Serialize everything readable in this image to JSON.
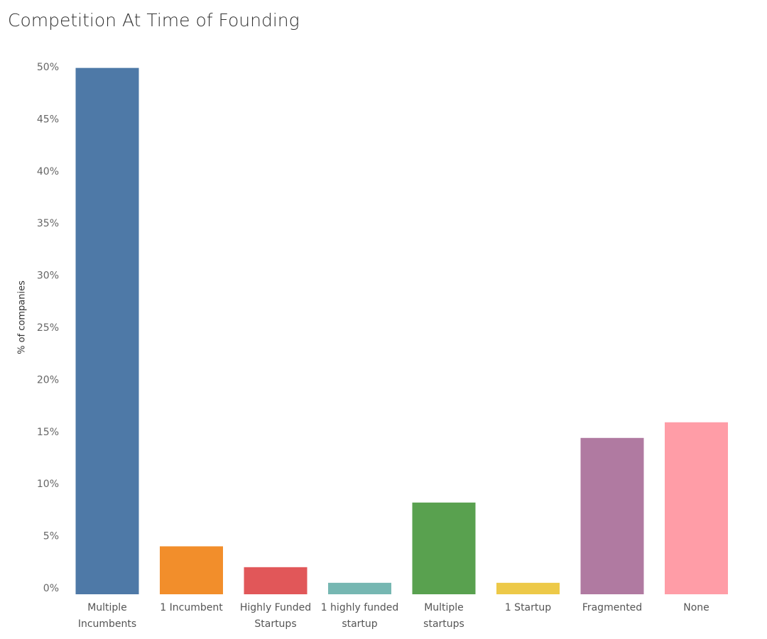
{
  "chart_data": {
    "type": "bar",
    "title": "Competition At Time of Founding",
    "xlabel": "",
    "ylabel": "% of companies",
    "ylim": [
      0,
      50.5
    ],
    "yticks": [
      "0%",
      "5%",
      "10%",
      "15%",
      "20%",
      "25%",
      "30%",
      "35%",
      "40%",
      "45%",
      "50%"
    ],
    "grid": false,
    "categories": [
      [
        "Multiple",
        "Incumbents"
      ],
      [
        "1 Incumbent"
      ],
      [
        "Highly Funded",
        "Startups"
      ],
      [
        "1 highly funded",
        "startup"
      ],
      [
        "Multiple",
        "startups"
      ],
      [
        "1 Startup"
      ],
      [
        "Fragmented"
      ],
      [
        "None"
      ]
    ],
    "values": [
      50.5,
      4.6,
      2.6,
      1.1,
      8.8,
      1.1,
      15.0,
      16.5
    ],
    "colors": [
      "#4e79a7",
      "#f28e2b",
      "#e15759",
      "#76b7b2",
      "#59a14f",
      "#edc948",
      "#b07aa1",
      "#ff9da7"
    ]
  }
}
